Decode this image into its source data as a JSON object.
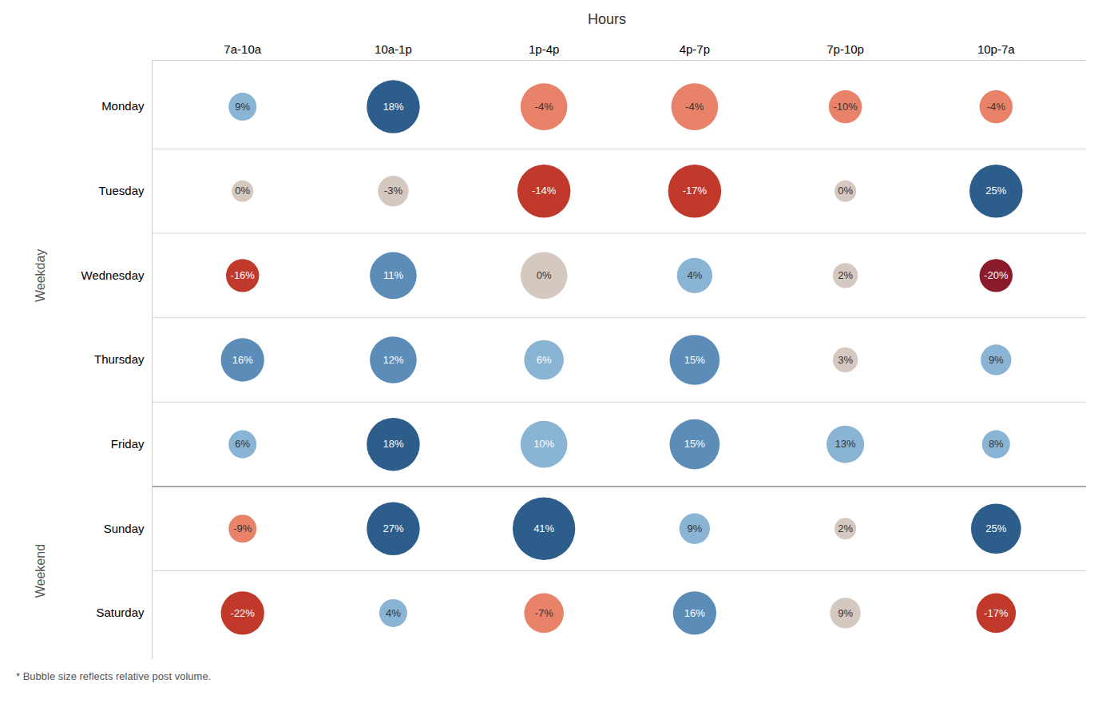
{
  "chart_data": {
    "type": "bubble",
    "title": "Hours",
    "footnote": "* Bubble size reflects relative post volume.",
    "x_categories": [
      "7a-10a",
      "10a-1p",
      "1p-4p",
      "4p-7p",
      "7p-10p",
      "10p-7a"
    ],
    "y_categories": [
      "Monday",
      "Tuesday",
      "Wednesday",
      "Thursday",
      "Friday",
      "Sunday",
      "Saturday"
    ],
    "groups": [
      {
        "name": "Weekday",
        "rows": [
          "Monday",
          "Tuesday",
          "Wednesday",
          "Thursday",
          "Friday"
        ]
      },
      {
        "name": "Weekend",
        "rows": [
          "Sunday",
          "Saturday"
        ]
      }
    ],
    "values": [
      [
        9,
        18,
        -4,
        -4,
        -10,
        -4
      ],
      [
        0,
        -3,
        -14,
        -17,
        0,
        25
      ],
      [
        -16,
        11,
        0,
        4,
        2,
        -20
      ],
      [
        16,
        12,
        6,
        15,
        3,
        9
      ],
      [
        6,
        18,
        10,
        15,
        13,
        8
      ],
      [
        -9,
        27,
        41,
        9,
        2,
        25
      ],
      [
        -22,
        4,
        -7,
        16,
        9,
        -17
      ]
    ],
    "value_labels": [
      [
        "9%",
        "18%",
        "-4%",
        "-4%",
        "-10%",
        "-4%"
      ],
      [
        "0%",
        "-3%",
        "-14%",
        "-17%",
        "0%",
        "25%"
      ],
      [
        "-16%",
        "11%",
        "0%",
        "4%",
        "2%",
        "-20%"
      ],
      [
        "16%",
        "12%",
        "6%",
        "15%",
        "3%",
        "9%"
      ],
      [
        "6%",
        "18%",
        "10%",
        "15%",
        "13%",
        "8%"
      ],
      [
        "-9%",
        "27%",
        "41%",
        "9%",
        "2%",
        "25%"
      ],
      [
        "-22%",
        "4%",
        "-7%",
        "16%",
        "9%",
        "-17%"
      ]
    ],
    "sizes": [
      [
        500,
        1800,
        1400,
        1400,
        700,
        700
      ],
      [
        300,
        600,
        1800,
        1800,
        300,
        1800
      ],
      [
        700,
        1400,
        1400,
        800,
        400,
        700
      ],
      [
        1200,
        1400,
        1000,
        1600,
        400,
        600
      ],
      [
        500,
        1800,
        1400,
        1600,
        900,
        500
      ],
      [
        500,
        1800,
        2500,
        600,
        300,
        1600
      ],
      [
        1200,
        500,
        1000,
        1200,
        600,
        1000
      ]
    ],
    "colors": [
      [
        "#8ab4d4",
        "#2d5d8a",
        "#e8836a",
        "#e8836a",
        "#e8836a",
        "#e8836a"
      ],
      [
        "#d4c8c0",
        "#d4c8c0",
        "#c0392b",
        "#c0392b",
        "#d4c8c0",
        "#2d5d8a"
      ],
      [
        "#c0392b",
        "#5b8db8",
        "#d4c8c0",
        "#8ab4d4",
        "#d4c8c0",
        "#8b1a2a"
      ],
      [
        "#5b8db8",
        "#5b8db8",
        "#8ab4d4",
        "#5b8db8",
        "#d4c8c0",
        "#8ab4d4"
      ],
      [
        "#8ab4d4",
        "#2d5d8a",
        "#8ab4d4",
        "#5b8db8",
        "#8ab4d4",
        "#8ab4d4"
      ],
      [
        "#e8836a",
        "#2d5d8a",
        "#2d5d8a",
        "#8ab4d4",
        "#d4c8c0",
        "#2d5d8a"
      ],
      [
        "#c0392b",
        "#8ab4d4",
        "#e8836a",
        "#5b8db8",
        "#d4c8c0",
        "#c0392b"
      ]
    ],
    "label_colors": [
      [
        "#333333",
        "#ffffff",
        "#333333",
        "#333333",
        "#333333",
        "#333333"
      ],
      [
        "#333333",
        "#333333",
        "#ffffff",
        "#ffffff",
        "#333333",
        "#ffffff"
      ],
      [
        "#ffffff",
        "#ffffff",
        "#333333",
        "#333333",
        "#333333",
        "#ffffff"
      ],
      [
        "#ffffff",
        "#ffffff",
        "#ffffff",
        "#ffffff",
        "#333333",
        "#333333"
      ],
      [
        "#333333",
        "#ffffff",
        "#ffffff",
        "#ffffff",
        "#333333",
        "#333333"
      ],
      [
        "#333333",
        "#ffffff",
        "#ffffff",
        "#333333",
        "#333333",
        "#ffffff"
      ],
      [
        "#ffffff",
        "#333333",
        "#333333",
        "#ffffff",
        "#333333",
        "#ffffff"
      ]
    ],
    "data_labels": true,
    "grid": true
  }
}
